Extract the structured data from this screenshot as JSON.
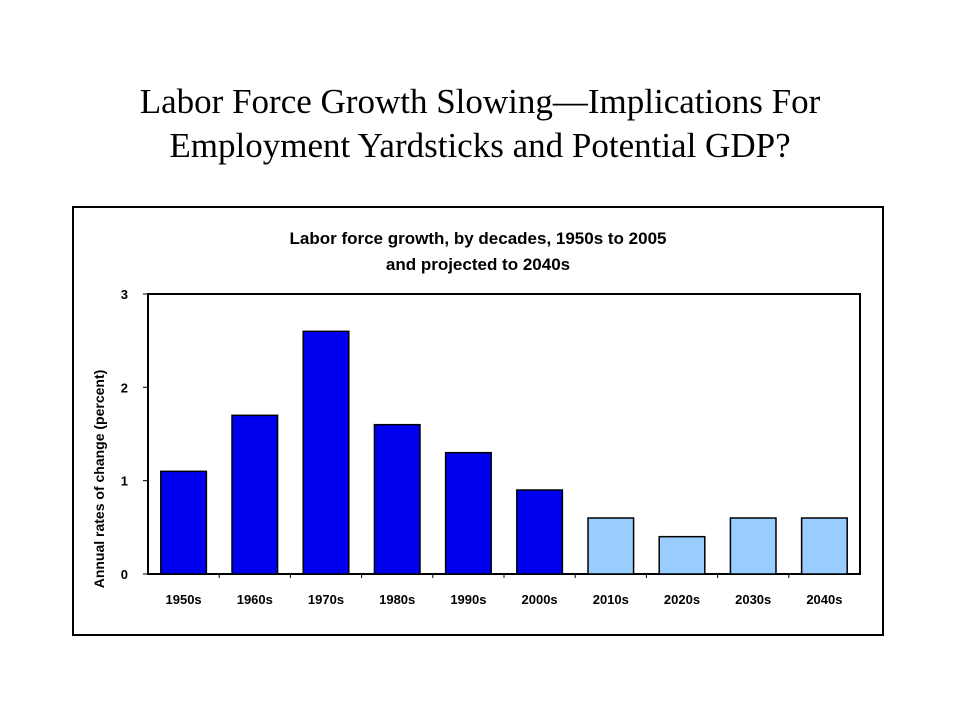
{
  "slide": {
    "title_line1": "Labor Force Growth Slowing—Implications For",
    "title_line2": "Employment Yardsticks and Potential GDP?"
  },
  "colors": {
    "historical_bar": "#0000ee",
    "projected_bar": "#99ccff",
    "bar_outline": "#000000",
    "axis": "#000000",
    "frame": "#000000"
  },
  "chart_data": {
    "type": "bar",
    "title_lines": [
      "Labor force growth, by decades, 1950s to 2005",
      "and projected to 2040s"
    ],
    "xlabel": "",
    "ylabel": "Annual rates of change (percent)",
    "categories": [
      "1950s",
      "1960s",
      "1970s",
      "1980s",
      "1990s",
      "2000s",
      "2010s",
      "2020s",
      "2030s",
      "2040s"
    ],
    "values": [
      1.1,
      1.7,
      2.6,
      1.6,
      1.3,
      0.9,
      0.6,
      0.4,
      0.6,
      0.6
    ],
    "bar_kind": [
      "historical",
      "historical",
      "historical",
      "historical",
      "historical",
      "historical",
      "projected",
      "projected",
      "projected",
      "projected"
    ],
    "ylim": [
      0,
      3
    ],
    "yticks": [
      0,
      1,
      2,
      3
    ],
    "grid": false,
    "legend": "none"
  }
}
